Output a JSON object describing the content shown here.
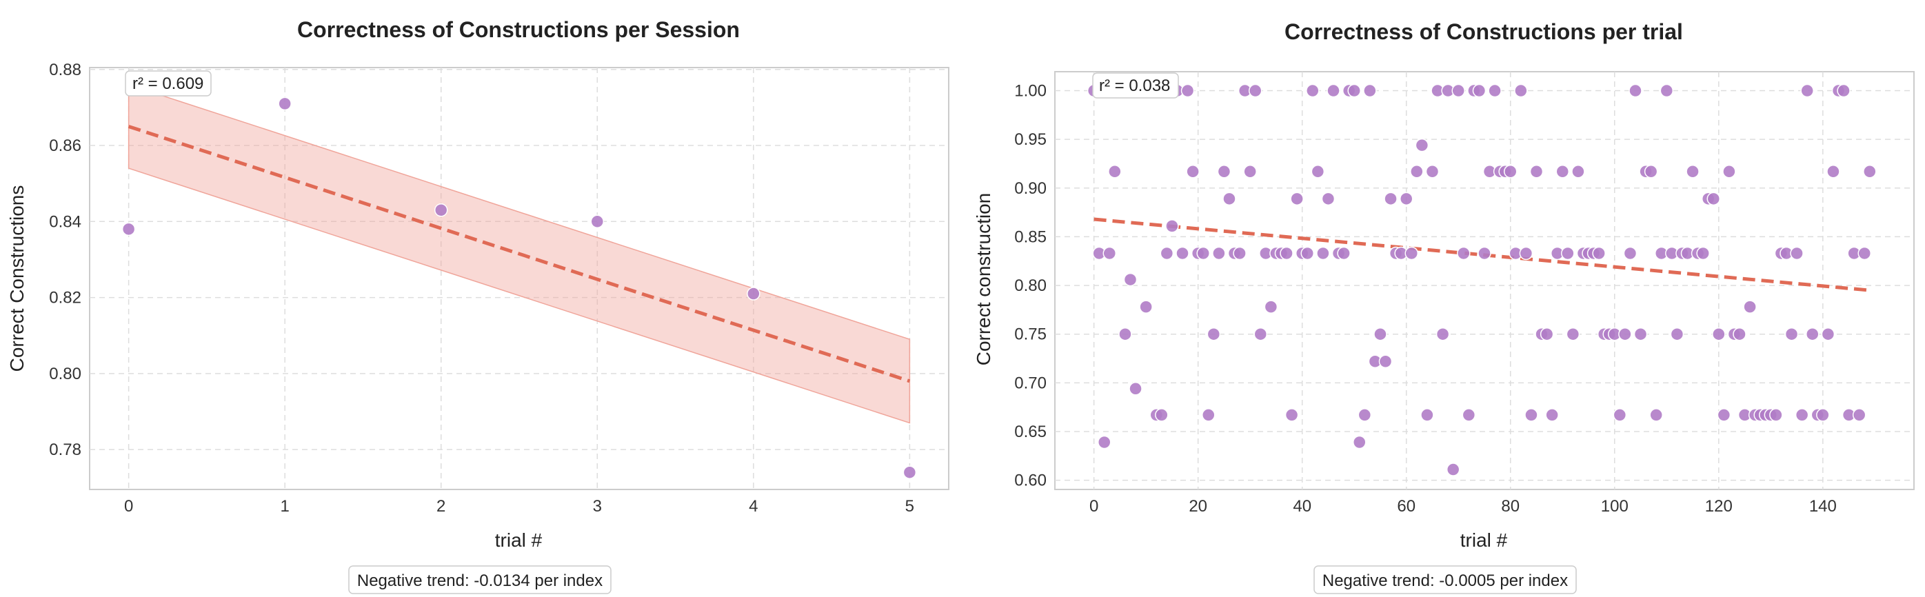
{
  "chart_data": [
    {
      "type": "scatter",
      "title": "Correctness of Constructions per Session",
      "xlabel": "trial #",
      "ylabel": "Correct Constructions",
      "xlim": [
        -0.25,
        5.25
      ],
      "ylim": [
        0.7695,
        0.8805
      ],
      "xticks": [
        0,
        1,
        2,
        3,
        4,
        5
      ],
      "yticks": [
        0.78,
        0.8,
        0.82,
        0.84,
        0.86,
        0.88
      ],
      "ytick_decimals": 2,
      "grid": true,
      "point_color": "#b07cc6",
      "trend_color": "#e06a55",
      "band_color": "#f0a59a",
      "points": {
        "x": [
          0,
          1,
          2,
          3,
          4,
          5
        ],
        "y": [
          0.838,
          0.871,
          0.843,
          0.84,
          0.821,
          0.774
        ]
      },
      "trend": {
        "x": [
          0,
          5
        ],
        "y": [
          0.865,
          0.798
        ]
      },
      "band": {
        "x": [
          0,
          5
        ],
        "upper": [
          0.876,
          0.809
        ],
        "lower": [
          0.854,
          0.787
        ]
      },
      "annotation": "r² = 0.609",
      "footnote": "Negative trend: -0.0134 per index"
    },
    {
      "type": "scatter",
      "title": "Correctness of Constructions per trial",
      "xlabel": "trial #",
      "ylabel": "Correct construction",
      "xlim": [
        -7.5,
        157.5
      ],
      "ylim": [
        0.5905,
        1.0195
      ],
      "xticks": [
        0,
        20,
        40,
        60,
        80,
        100,
        120,
        140
      ],
      "yticks": [
        0.6,
        0.65,
        0.7,
        0.75,
        0.8,
        0.85,
        0.9,
        0.95,
        1.0
      ],
      "ytick_decimals": 2,
      "grid": true,
      "point_color": "#b07cc6",
      "trend_color": "#e06a55",
      "points": {
        "x": [
          0,
          1,
          2,
          3,
          4,
          5,
          6,
          7,
          8,
          10,
          12,
          13,
          14,
          15,
          16,
          17,
          18,
          19,
          20,
          21,
          22,
          23,
          24,
          25,
          26,
          27,
          28,
          29,
          30,
          31,
          32,
          33,
          34,
          35,
          36,
          37,
          38,
          39,
          40,
          41,
          42,
          43,
          44,
          45,
          46,
          47,
          48,
          49,
          50,
          51,
          52,
          53,
          54,
          55,
          56,
          57,
          58,
          59,
          60,
          61,
          62,
          63,
          64,
          65,
          66,
          67,
          68,
          69,
          70,
          71,
          72,
          73,
          74,
          75,
          76,
          77,
          78,
          79,
          80,
          81,
          82,
          83,
          84,
          85,
          86,
          87,
          88,
          89,
          90,
          91,
          92,
          93,
          94,
          95,
          96,
          97,
          98,
          99,
          100,
          101,
          102,
          103,
          104,
          105,
          106,
          107,
          108,
          109,
          110,
          111,
          112,
          113,
          114,
          115,
          116,
          117,
          118,
          119,
          120,
          121,
          122,
          123,
          124,
          125,
          126,
          127,
          128,
          129,
          130,
          131,
          132,
          133,
          134,
          135,
          136,
          137,
          138,
          139,
          140,
          141,
          142,
          143,
          144,
          145,
          146,
          147,
          148,
          149
        ],
        "y": [
          1.0,
          0.833,
          0.639,
          0.833,
          0.917,
          1.0,
          0.75,
          0.806,
          0.694,
          0.778,
          0.667,
          0.667,
          0.833,
          0.861,
          1.0,
          0.833,
          1.0,
          0.917,
          0.833,
          0.833,
          0.667,
          0.75,
          0.833,
          0.917,
          0.889,
          0.833,
          0.833,
          1.0,
          0.917,
          1.0,
          0.75,
          0.833,
          0.778,
          0.833,
          0.833,
          0.833,
          0.667,
          0.889,
          0.833,
          0.833,
          1.0,
          0.917,
          0.833,
          0.889,
          1.0,
          0.833,
          0.833,
          1.0,
          1.0,
          0.639,
          0.667,
          1.0,
          0.722,
          0.75,
          0.722,
          0.889,
          0.833,
          0.833,
          0.889,
          0.833,
          0.917,
          0.944,
          0.667,
          0.917,
          1.0,
          0.75,
          1.0,
          0.611,
          1.0,
          0.833,
          0.667,
          1.0,
          1.0,
          0.833,
          0.917,
          1.0,
          0.917,
          0.917,
          0.917,
          0.833,
          1.0,
          0.833,
          0.667,
          0.917,
          0.75,
          0.75,
          0.667,
          0.833,
          0.917,
          0.833,
          0.75,
          0.917,
          0.833,
          0.833,
          0.833,
          0.833,
          0.75,
          0.75,
          0.75,
          0.667,
          0.75,
          0.833,
          1.0,
          0.75,
          0.917,
          0.917,
          0.667,
          0.833,
          1.0,
          0.833,
          0.75,
          0.833,
          0.833,
          0.917,
          0.833,
          0.833,
          0.889,
          0.889,
          0.75,
          0.667,
          0.917,
          0.75,
          0.75,
          0.667,
          0.778,
          0.667,
          0.667,
          0.667,
          0.667,
          0.667,
          0.833,
          0.833,
          0.75,
          0.833,
          0.667,
          1.0,
          0.75,
          0.667,
          0.667,
          0.75,
          0.917,
          1.0,
          1.0,
          0.667,
          0.833,
          0.667,
          0.833,
          0.917
        ]
      },
      "trend": {
        "x": [
          0,
          149
        ],
        "y": [
          0.868,
          0.795
        ]
      },
      "annotation": "r² = 0.038",
      "footnote": "Negative trend: -0.0005 per index"
    }
  ]
}
